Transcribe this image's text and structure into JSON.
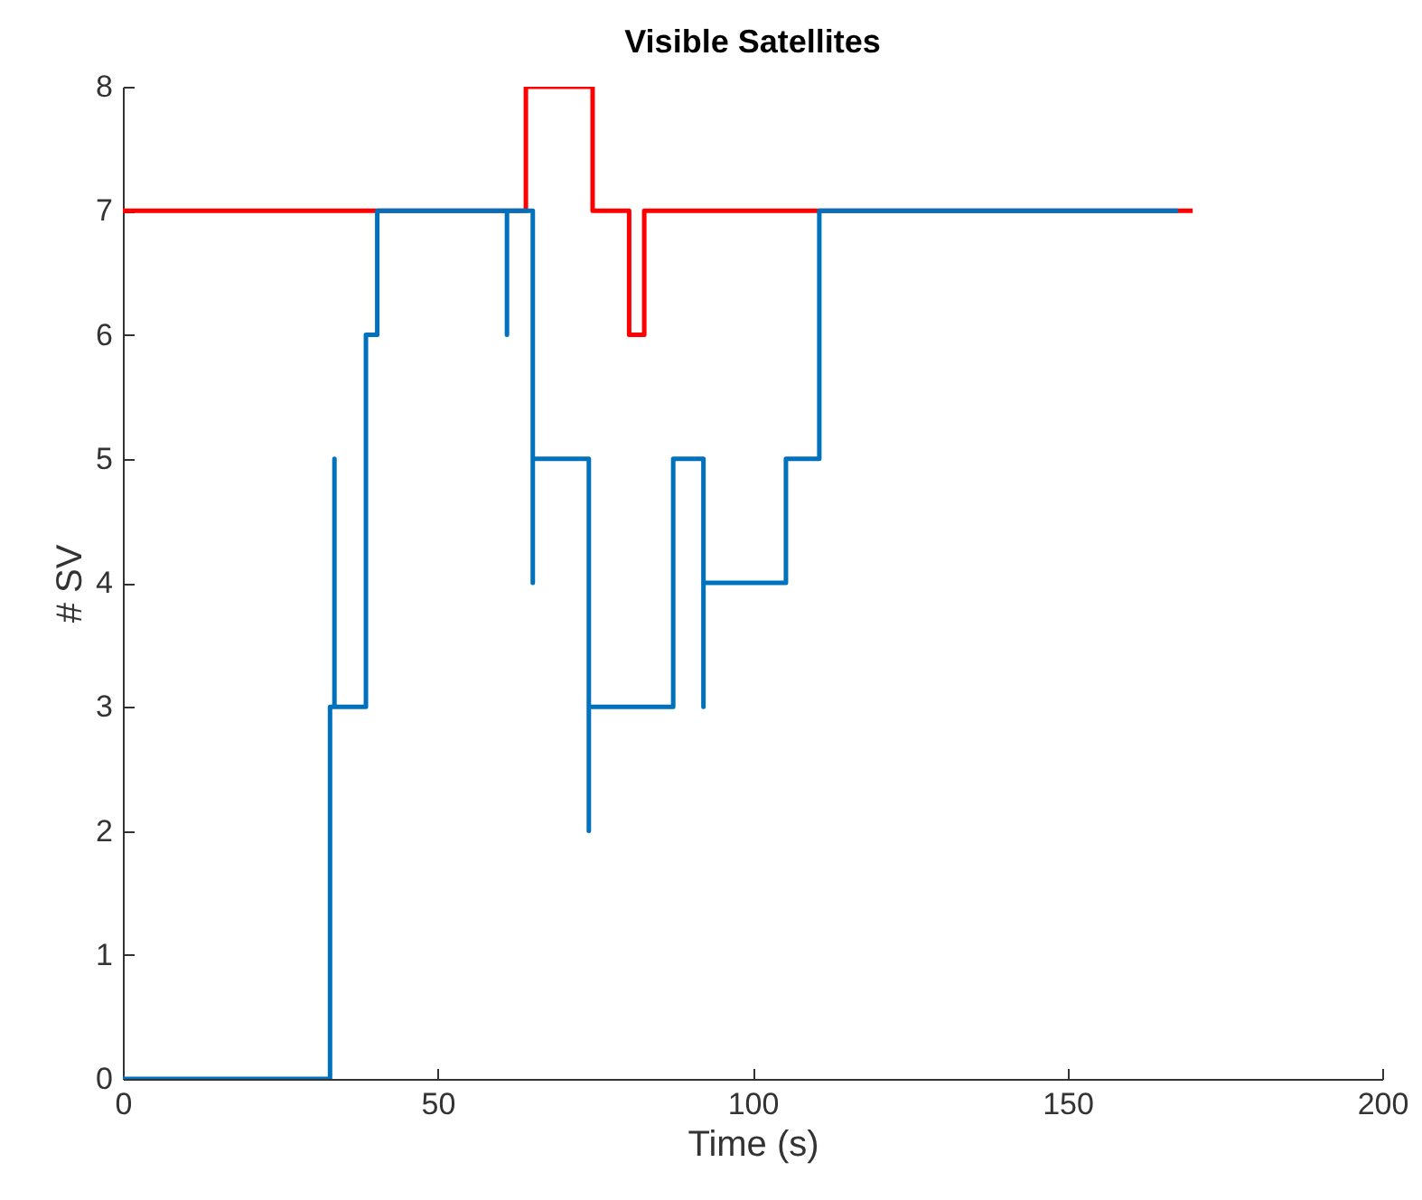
{
  "chart_data": {
    "type": "line",
    "title": "Visible Satellites",
    "xlabel": "Time (s)",
    "ylabel": "# SV",
    "xlim": [
      0,
      200
    ],
    "xticks": [
      0,
      50,
      100,
      150,
      200
    ],
    "ylim": [
      0,
      8
    ],
    "yticks": [
      0,
      1,
      2,
      3,
      4,
      5,
      6,
      7,
      8
    ],
    "grid": false,
    "legend": false,
    "line_style": "solid",
    "marker": "none",
    "series": [
      {
        "color": "#ff0000",
        "x": [
          0,
          64.0,
          64.0,
          74.6,
          74.6,
          80.4,
          80.4,
          82.8,
          82.8,
          169.9
        ],
        "values": [
          7,
          7,
          8,
          8,
          7,
          7,
          6,
          6,
          7,
          7
        ]
      },
      {
        "color": "#0072bd",
        "x": [
          0,
          32.9,
          32.9,
          33.6,
          33.6,
          33.6,
          38.6,
          38.6,
          40.4,
          40.4,
          61.0,
          61.0,
          61.0,
          65.1,
          65.1,
          65.1,
          74.0,
          74.0,
          74.0,
          87.4,
          87.4,
          92.2,
          92.2,
          92.2,
          105.3,
          105.3,
          110.6,
          110.6,
          110.6,
          167.6
        ],
        "values": [
          0,
          0,
          3,
          3,
          5,
          3,
          3,
          6,
          6,
          7,
          7,
          6,
          7,
          7,
          4,
          5,
          5,
          2,
          3,
          3,
          5,
          5,
          3,
          4,
          4,
          5,
          5,
          6,
          7,
          7
        ]
      }
    ]
  }
}
